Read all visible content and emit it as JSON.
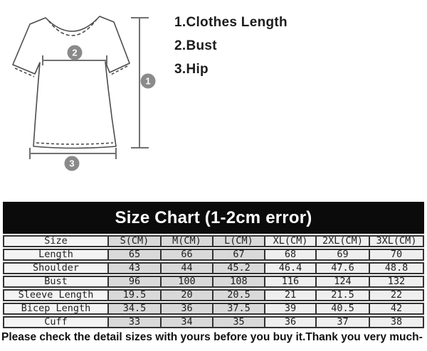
{
  "diagram": {
    "markers": [
      "1",
      "2",
      "3"
    ],
    "legend_items": [
      "1.Clothes Length",
      "2.Bust",
      "3.Hip"
    ]
  },
  "chart_data": {
    "type": "table",
    "title": "Size Chart (1-2cm error)",
    "columns": [
      "Size",
      "S(CM)",
      "M(CM)",
      "L(CM)",
      "XL(CM)",
      "2XL(CM)",
      "3XL(CM)"
    ],
    "rows": [
      {
        "label": "Length",
        "values": [
          65,
          66,
          67,
          68,
          69,
          70
        ]
      },
      {
        "label": "Shoulder",
        "values": [
          43,
          44,
          45.2,
          46.4,
          47.6,
          48.8
        ]
      },
      {
        "label": "Bust",
        "values": [
          96,
          100,
          108,
          116,
          124,
          132
        ]
      },
      {
        "label": "Sleeve Length",
        "values": [
          19.5,
          20,
          20.5,
          21,
          21.5,
          22
        ]
      },
      {
        "label": "Bicep Length",
        "values": [
          34.5,
          36,
          37.5,
          39,
          40.5,
          42
        ]
      },
      {
        "label": "Cuff",
        "values": [
          33,
          34,
          35,
          36,
          37,
          38
        ]
      }
    ],
    "units": "CM",
    "tolerance_note": "1-2cm error"
  },
  "footer": {
    "note": "Please check the detail sizes with yours before you buy it.Thank you very much-"
  },
  "colors": {
    "title_bar_bg": "#0b0b0b",
    "title_text": "#ffffff",
    "cell_gray": "#d9d9d9",
    "cell_light": "#efefef",
    "label_col_bg": "#f4f4f4",
    "table_border": "#333333",
    "marker_gray": "#8a8a8a",
    "diagram_line": "#707070"
  }
}
